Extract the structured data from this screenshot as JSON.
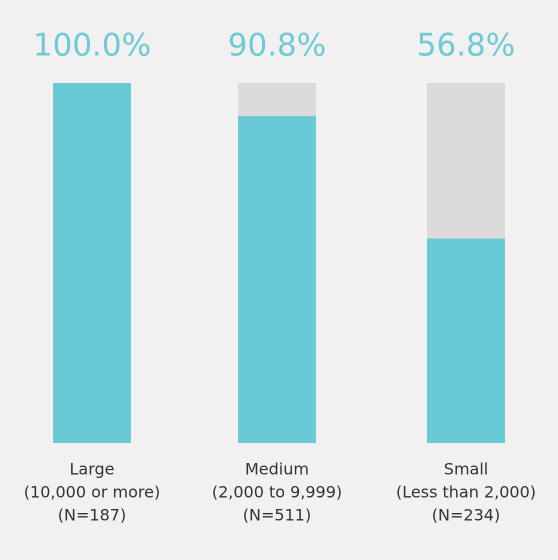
{
  "chart_data": {
    "type": "bar",
    "categories": [
      [
        "Large",
        "(10,000 or more)",
        "(N=187)"
      ],
      [
        "Medium",
        "(2,000 to 9,999)",
        "(N=511)"
      ],
      [
        "Small",
        "(Less than 2,000)",
        "(N=234)"
      ]
    ],
    "values": [
      100,
      90.8,
      56.8
    ],
    "value_labels": [
      "100.0%",
      "90.8%",
      "56.8%"
    ],
    "color": "#68cad4",
    "ylim": [
      0,
      100
    ]
  }
}
